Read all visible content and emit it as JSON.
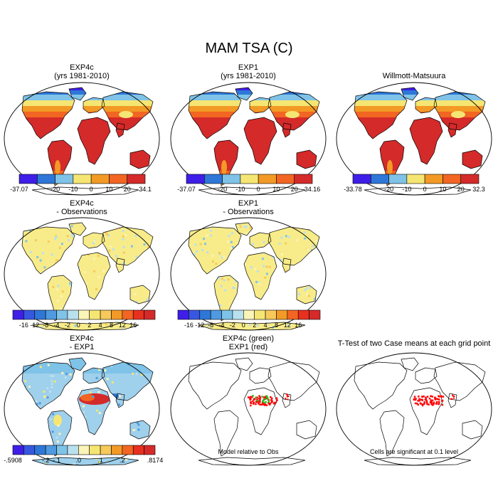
{
  "chart_data": {
    "type": "heatmap",
    "title": "MAM TSA (C)",
    "panels": [
      {
        "id": "p1",
        "title": "EXP4c",
        "subtitle": "(yrs 1981-2010)",
        "field": "absolute"
      },
      {
        "id": "p2",
        "title": "EXP1",
        "subtitle": "(yrs 1981-2010)",
        "field": "absolute"
      },
      {
        "id": "p3",
        "title": "Willmott-Matsuura",
        "subtitle": "",
        "field": "absolute"
      },
      {
        "id": "p4",
        "title": "EXP4c",
        "subtitle": "- Observations",
        "field": "anomaly"
      },
      {
        "id": "p5",
        "title": "EXP1",
        "subtitle": "- Observations",
        "field": "anomaly"
      },
      {
        "id": "p7",
        "title": "EXP4c",
        "subtitle": "- EXP1",
        "field": "difference"
      },
      {
        "id": "p8",
        "title": "EXP4c (green)",
        "subtitle": "EXP1 (red)",
        "field": "significance"
      },
      {
        "id": "p9",
        "title": "T-Test of two Case means at each grid point",
        "subtitle": "",
        "field": "significance"
      }
    ],
    "colorbars": [
      {
        "id": "cb1",
        "colors": [
          "#3f1ee8",
          "#2e77d8",
          "#7fc3e8",
          "#f5e673",
          "#f29a25",
          "#f26522",
          "#d42a2a"
        ],
        "labels": [
          "-37.07",
          "-20",
          "-10",
          "0",
          "10",
          "20",
          "34.1"
        ],
        "min": -37.07,
        "max": 34.1
      },
      {
        "id": "cb2",
        "colors": [
          "#3f1ee8",
          "#2e77d8",
          "#7fc3e8",
          "#f5e673",
          "#f29a25",
          "#f26522",
          "#d42a2a"
        ],
        "labels": [
          "-37.07",
          "-20",
          "-10",
          "0",
          "10",
          "20",
          "34.16"
        ],
        "min": -37.07,
        "max": 34.16
      },
      {
        "id": "cb3",
        "colors": [
          "#3f1ee8",
          "#2e77d8",
          "#7fc3e8",
          "#f5e673",
          "#f29a25",
          "#f26522",
          "#d42a2a"
        ],
        "labels": [
          "-33.78",
          "-20",
          "-10",
          "0",
          "10",
          "20",
          "32.3"
        ],
        "min": -33.78,
        "max": 32.3
      },
      {
        "id": "cb4",
        "colors": [
          "#3f1ee8",
          "#3857e0",
          "#2e77d8",
          "#4f9ae0",
          "#7fc3e8",
          "#b9e0ef",
          "#fbf4b8",
          "#f5e673",
          "#f6c95a",
          "#f29a25",
          "#f26522",
          "#e8301f",
          "#d42a2a"
        ],
        "labels": [
          "-16",
          "-12",
          "-8",
          "-4",
          "-2",
          "0",
          "2",
          "4",
          "8",
          "12",
          "16"
        ],
        "min": -16,
        "max": 16
      },
      {
        "id": "cb5",
        "colors": [
          "#3f1ee8",
          "#3857e0",
          "#2e77d8",
          "#4f9ae0",
          "#7fc3e8",
          "#b9e0ef",
          "#fbf4b8",
          "#f5e673",
          "#f6c95a",
          "#f29a25",
          "#f26522",
          "#e8301f",
          "#d42a2a"
        ],
        "labels": [
          "-16",
          "-12",
          "-8",
          "-4",
          "-2",
          "0",
          "2",
          "4",
          "8",
          "12",
          "16"
        ],
        "min": -16,
        "max": 16
      },
      {
        "id": "cb7",
        "colors": [
          "#3f1ee8",
          "#3857e0",
          "#2e77d8",
          "#4f9ae0",
          "#7fc3e8",
          "#b9e0ef",
          "#fbf4b8",
          "#f5e673",
          "#f6c95a",
          "#f29a25",
          "#f26522",
          "#e8301f",
          "#d42a2a"
        ],
        "labels": [
          "-.5908",
          "-.2",
          "-.1",
          ".0",
          ".1",
          ".2",
          ".8174"
        ],
        "min": -0.5908,
        "max": 0.8174
      }
    ]
  },
  "notes": {
    "model_note": "Model relative to Obs",
    "cells_note": "Cells are significant at 0.1 level"
  },
  "palette": {
    "warm": "#d42a2a",
    "orange": "#f26522",
    "amber": "#f29a25",
    "yellow": "#f5e673",
    "lightblue": "#7fc3e8",
    "blue": "#2e77d8",
    "violet": "#3f1ee8",
    "sigred": "#ff0000",
    "siggreen": "#22c022"
  }
}
